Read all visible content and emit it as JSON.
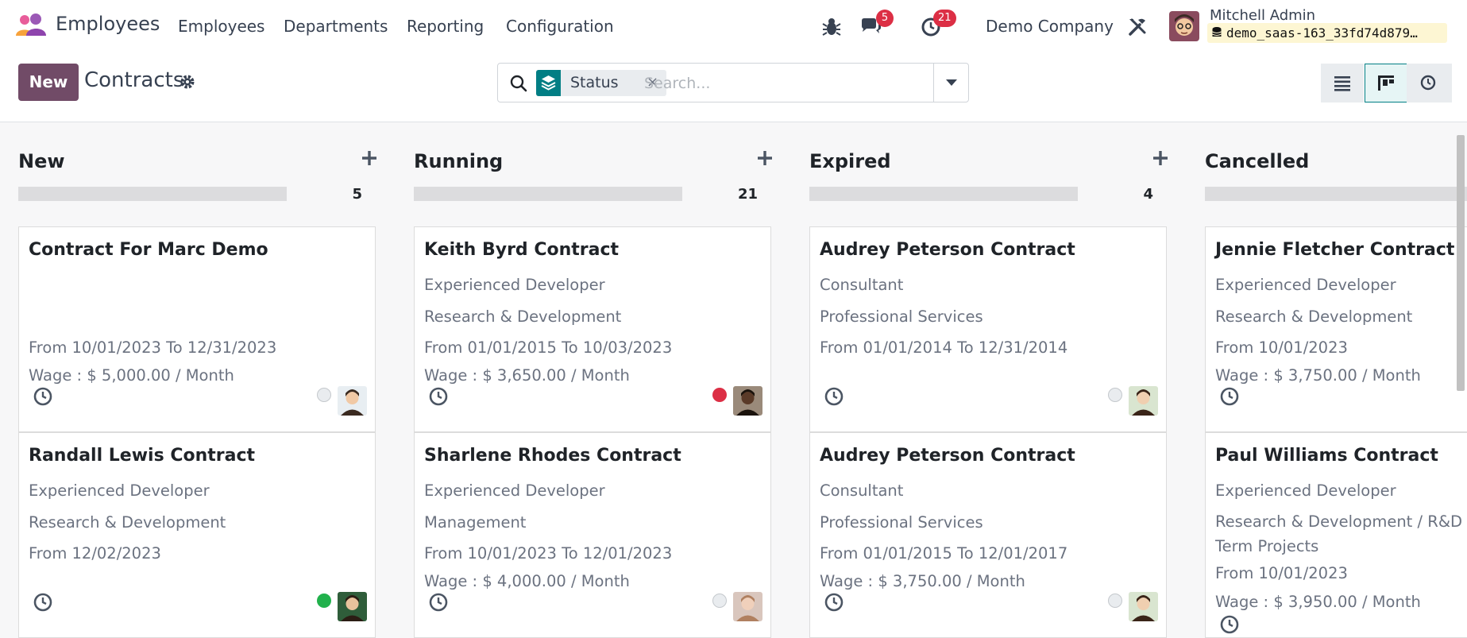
{
  "navbar": {
    "app_name": "Employees",
    "menu": [
      "Employees",
      "Departments",
      "Reporting",
      "Configuration"
    ],
    "messages_badge": "5",
    "activities_badge": "21",
    "company": "Demo Company",
    "user_name": "Mitchell Admin",
    "database": "demo_saas-163_33fd74d879…"
  },
  "control": {
    "new_label": "New",
    "breadcrumb": "Contracts",
    "facet_label": "Status",
    "facet_remove": "×",
    "search_placeholder": "Search..."
  },
  "columns": [
    {
      "title": "New",
      "count": "5",
      "cards": [
        {
          "title": "Contract For Marc Demo",
          "lines": [
            "From 10/01/2023 To 12/31/2023",
            "Wage : $ 5,000.00 / Month"
          ],
          "state": "normal"
        },
        {
          "title": "Randall Lewis Contract",
          "lines": [
            "Experienced Developer",
            "Research & Development",
            "From 12/02/2023"
          ],
          "state": "done"
        }
      ]
    },
    {
      "title": "Running",
      "count": "21",
      "cards": [
        {
          "title": "Keith Byrd Contract",
          "lines": [
            "Experienced Developer",
            "Research & Development",
            "From 01/01/2015 To 10/03/2023",
            "Wage : $ 3,650.00 / Month"
          ],
          "state": "blocked"
        },
        {
          "title": "Sharlene Rhodes Contract",
          "lines": [
            "Experienced Developer",
            "Management",
            "From 10/01/2023 To 12/01/2023",
            "Wage : $ 4,000.00 / Month"
          ],
          "state": "normal"
        }
      ]
    },
    {
      "title": "Expired",
      "count": "4",
      "cards": [
        {
          "title": "Audrey Peterson Contract",
          "lines": [
            "Consultant",
            "Professional Services",
            "From 01/01/2014 To 12/31/2014"
          ],
          "state": "normal"
        },
        {
          "title": "Audrey Peterson Contract",
          "lines": [
            "Consultant",
            "Professional Services",
            "From 01/01/2015 To 12/01/2017",
            "Wage : $ 3,750.00 / Month"
          ],
          "state": "normal"
        }
      ]
    },
    {
      "title": "Cancelled",
      "count": "",
      "cards": [
        {
          "title": "Jennie Fletcher Contract",
          "lines": [
            "Experienced Developer",
            "Research & Development",
            "From 10/01/2023",
            "Wage : $ 3,750.00 / Month"
          ],
          "state": ""
        },
        {
          "title": "Paul Williams Contract",
          "lines": [
            "Experienced Developer",
            "Research & Development / R&D",
            "Term Projects",
            "From 10/01/2023",
            "Wage : $ 3,950.00 / Month"
          ],
          "state": ""
        }
      ]
    }
  ],
  "colors": {
    "brand": "#714b67",
    "facet": "#017e84",
    "badge": "#dc2f45",
    "state_blocked": "#dc2f45",
    "state_done": "#21b14c",
    "state_normal": "#e9ecef"
  }
}
